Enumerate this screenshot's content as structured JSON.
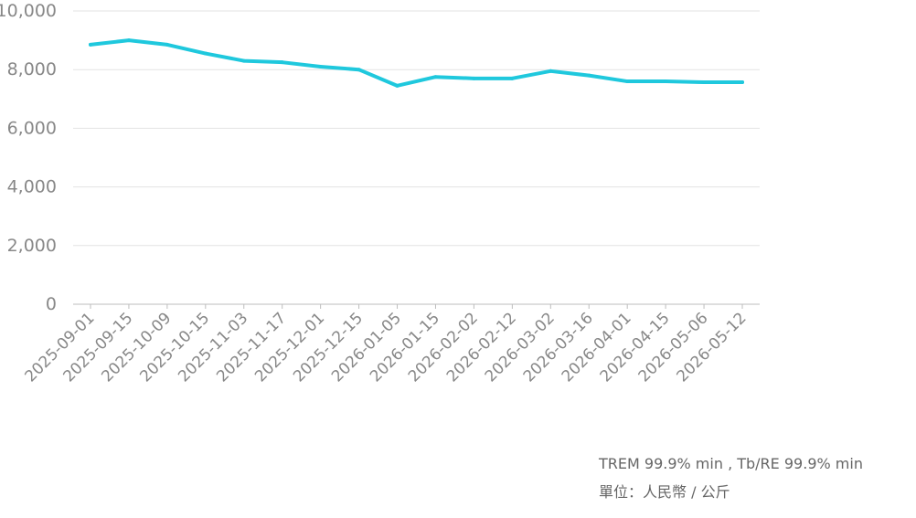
{
  "chart_data": {
    "type": "line",
    "ylim": [
      0,
      10000
    ],
    "yticks": [
      "0",
      "2,000",
      "4,000",
      "6,000",
      "8,000",
      "10,000"
    ],
    "grid": true,
    "x": [
      "2025-09-01",
      "2025-09-15",
      "2025-10-09",
      "2025-10-15",
      "2025-11-03",
      "2025-11-17",
      "2025-12-01",
      "2025-12-15",
      "2026-01-05",
      "2026-01-15",
      "2026-02-02",
      "2026-02-12",
      "2026-03-02",
      "2026-03-16",
      "2026-04-01",
      "2026-04-15",
      "2026-05-06",
      "2026-05-12"
    ],
    "series": [
      {
        "color": "#1fc8dd",
        "values": [
          8850,
          9000,
          8850,
          8550,
          8300,
          8250,
          8100,
          8000,
          7450,
          7750,
          7700,
          7700,
          7950,
          7800,
          7600,
          7600,
          7570,
          7570
        ]
      }
    ]
  },
  "notes": {
    "spec": "TREM 99.9% min , Tb/RE 99.9% min",
    "unit": "單位：人民幣 / 公斤"
  }
}
